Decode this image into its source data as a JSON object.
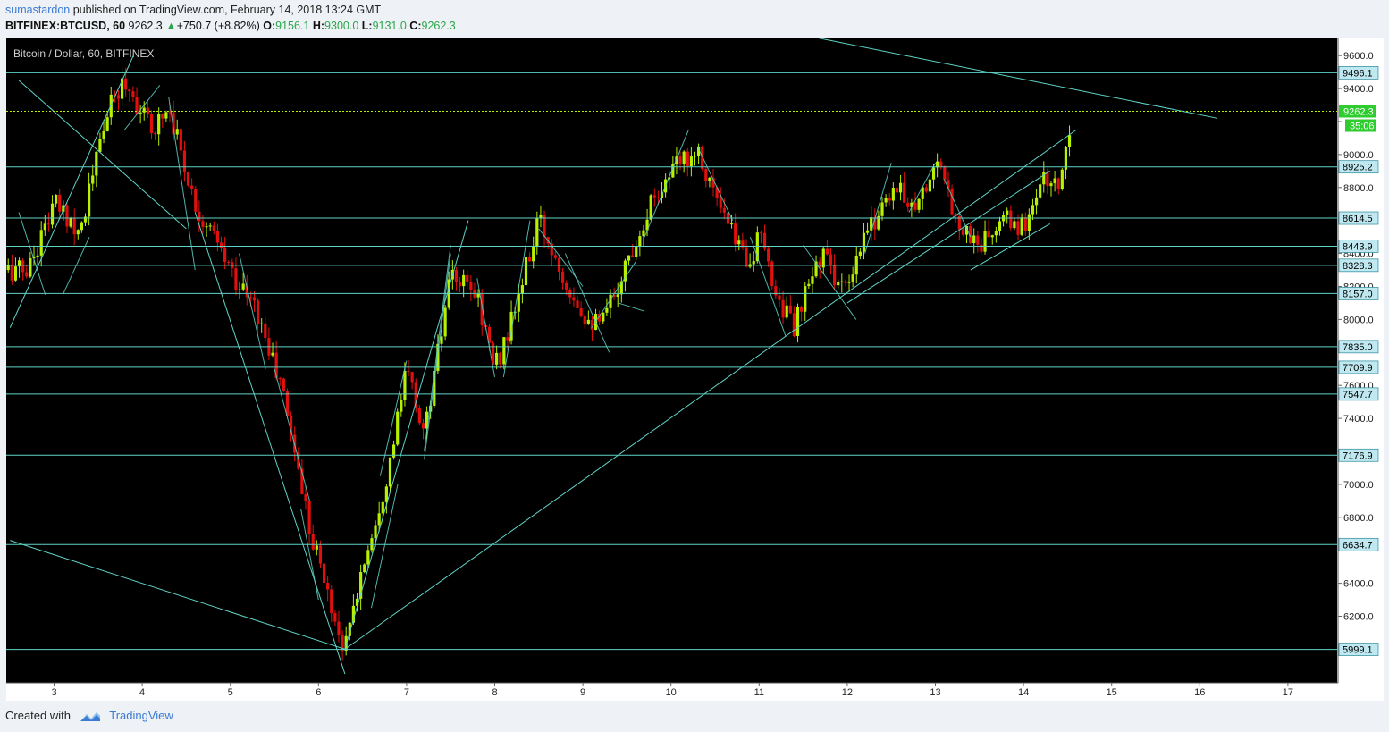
{
  "header": {
    "author": "sumastardon",
    "published_text": "published on TradingView.com, February 14, 2018 13:24 GMT",
    "symbol": "BITFINEX:BTCUSD, 60",
    "last": "9262.3",
    "change_arrow": "▲",
    "change": "+750.7 (+8.82%)",
    "o_label": "O:",
    "o_val": "9156.1",
    "h_label": "H:",
    "h_val": "9300.0",
    "l_label": "L:",
    "l_val": "9131.0",
    "c_label": "C:",
    "c_val": "9262.3"
  },
  "chart_title": "Bitcoin / Dollar, 60, BITFINEX",
  "footer": {
    "created_with": "Created with",
    "brand": "TradingView"
  },
  "colors": {
    "background": "#000000",
    "up": "#b7f000",
    "down": "#e0100e",
    "line": "#5fd3c6",
    "price_line": "#b7f000",
    "axis_bg": "#ffffff",
    "page_bg": "#eef1f5"
  },
  "chart_data": {
    "type": "candlestick",
    "timeframe": "60",
    "x_ticks": [
      "3",
      "4",
      "5",
      "6",
      "7",
      "8",
      "9",
      "10",
      "11",
      "12",
      "13",
      "14",
      "15",
      "16",
      "17"
    ],
    "y_ticks": [
      6200,
      6400,
      6600,
      6800,
      7000,
      7200,
      7400,
      7600,
      7800,
      8000,
      8200,
      8400,
      8600,
      8800,
      9000,
      9200,
      9400,
      9600
    ],
    "y_tick_labels_visible": [
      "9600.0",
      "9400.0",
      "9000.0",
      "8800.0",
      "8400.0",
      "8200.0",
      "8000.0",
      "7600.0",
      "7400.0",
      "7000.0",
      "6800.0",
      "6400.0",
      "6200.0"
    ],
    "ylim": [
      5820,
      9700
    ],
    "horizontal_levels": [
      9496.1,
      9262.3,
      8925.2,
      8614.5,
      8443.9,
      8328.3,
      8157.0,
      7835.0,
      7709.9,
      7547.7,
      7176.9,
      6634.7,
      5999.1
    ],
    "horizontal_level_labels": [
      "9496.1",
      "8925.2",
      "8614.5",
      "8443.9",
      "8328.3",
      "8157.0",
      "7835.0",
      "7709.9",
      "7547.7",
      "7176.9",
      "6634.7",
      "5999.1"
    ],
    "current_price": "9262.3",
    "countdown": "35:06",
    "ohlc_daily_path": [
      {
        "day": 2.7,
        "price": 8300
      },
      {
        "day": 3.0,
        "price": 8700
      },
      {
        "day": 3.3,
        "price": 8550
      },
      {
        "day": 3.6,
        "price": 9250
      },
      {
        "day": 3.8,
        "price": 9450
      },
      {
        "day": 4.1,
        "price": 9150
      },
      {
        "day": 4.3,
        "price": 9300
      },
      {
        "day": 4.6,
        "price": 8700
      },
      {
        "day": 5.0,
        "price": 8300
      },
      {
        "day": 5.3,
        "price": 8050
      },
      {
        "day": 5.6,
        "price": 7550
      },
      {
        "day": 5.9,
        "price": 6750
      },
      {
        "day": 6.2,
        "price": 6150
      },
      {
        "day": 6.3,
        "price": 6000
      },
      {
        "day": 6.5,
        "price": 6500
      },
      {
        "day": 6.8,
        "price": 7100
      },
      {
        "day": 7.0,
        "price": 7700
      },
      {
        "day": 7.2,
        "price": 7300
      },
      {
        "day": 7.5,
        "price": 8250
      },
      {
        "day": 7.8,
        "price": 8150
      },
      {
        "day": 8.0,
        "price": 7700
      },
      {
        "day": 8.2,
        "price": 8000
      },
      {
        "day": 8.5,
        "price": 8600
      },
      {
        "day": 8.8,
        "price": 8250
      },
      {
        "day": 9.0,
        "price": 8050
      },
      {
        "day": 9.2,
        "price": 7950
      },
      {
        "day": 9.5,
        "price": 8350
      },
      {
        "day": 9.8,
        "price": 8750
      },
      {
        "day": 10.1,
        "price": 8950
      },
      {
        "day": 10.3,
        "price": 9050
      },
      {
        "day": 10.6,
        "price": 8600
      },
      {
        "day": 10.9,
        "price": 8350
      },
      {
        "day": 11.0,
        "price": 8500
      },
      {
        "day": 11.2,
        "price": 8150
      },
      {
        "day": 11.4,
        "price": 7950
      },
      {
        "day": 11.7,
        "price": 8400
      },
      {
        "day": 12.0,
        "price": 8150
      },
      {
        "day": 12.2,
        "price": 8500
      },
      {
        "day": 12.5,
        "price": 8800
      },
      {
        "day": 12.8,
        "price": 8700
      },
      {
        "day": 13.0,
        "price": 8950
      },
      {
        "day": 13.3,
        "price": 8550
      },
      {
        "day": 13.5,
        "price": 8450
      },
      {
        "day": 13.8,
        "price": 8600
      },
      {
        "day": 14.0,
        "price": 8550
      },
      {
        "day": 14.2,
        "price": 8850
      },
      {
        "day": 14.4,
        "price": 8800
      },
      {
        "day": 14.55,
        "price": 9262
      }
    ],
    "trend_lines": [
      {
        "from": {
          "day": 2.5,
          "price": 7950
        },
        "to": {
          "day": 3.9,
          "price": 9600
        }
      },
      {
        "from": {
          "day": 2.6,
          "price": 9450
        },
        "to": {
          "day": 4.5,
          "price": 8550
        }
      },
      {
        "from": {
          "day": 2.5,
          "price": 6660
        },
        "to": {
          "day": 6.3,
          "price": 6000
        }
      },
      {
        "from": {
          "day": 6.3,
          "price": 6000
        },
        "to": {
          "day": 14.6,
          "price": 9150
        }
      },
      {
        "from": {
          "day": 10.8,
          "price": 9800
        },
        "to": {
          "day": 16.2,
          "price": 9220
        }
      },
      {
        "from": {
          "day": 4.6,
          "price": 8650
        },
        "to": {
          "day": 6.3,
          "price": 5850
        }
      },
      {
        "from": {
          "day": 6.3,
          "price": 6000
        },
        "to": {
          "day": 7.7,
          "price": 8600
        }
      },
      {
        "from": {
          "day": 12.0,
          "price": 8100
        },
        "to": {
          "day": 14.3,
          "price": 8900
        }
      },
      {
        "from": {
          "day": 13.4,
          "price": 8300
        },
        "to": {
          "day": 14.3,
          "price": 8580
        }
      }
    ]
  }
}
